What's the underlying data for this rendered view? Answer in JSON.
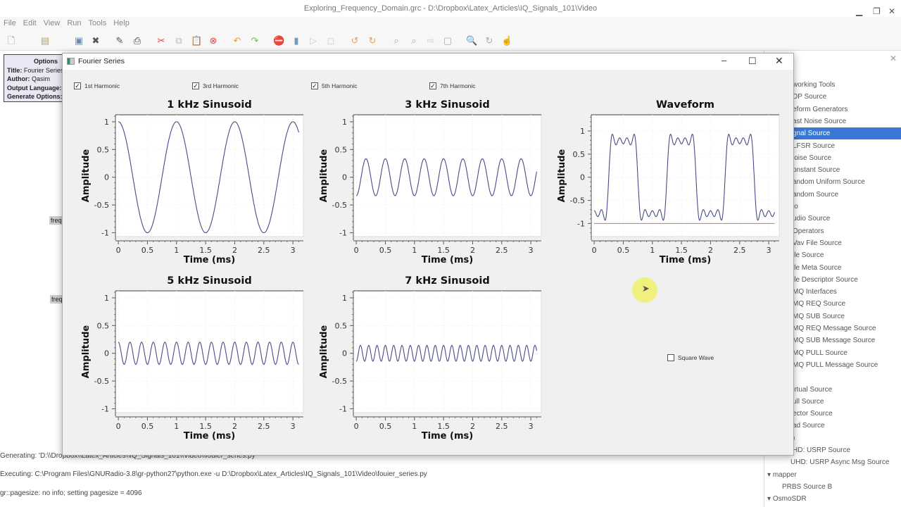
{
  "app": {
    "window_title": "Exploring_Frequency_Domain.grc - D:\\Dropbox\\Latex_Articles\\IQ_Signals_101\\Video",
    "menu": [
      "File",
      "Edit",
      "View",
      "Run",
      "Tools",
      "Help"
    ]
  },
  "flowgraph": {
    "options_block": {
      "header": "Options",
      "rows": [
        {
          "k": "Title:",
          "v": "Fourier Series"
        },
        {
          "k": "Author:",
          "v": "Qasim"
        },
        {
          "k": "Output Language:",
          "v": ""
        },
        {
          "k": "Generate Options:",
          "v": ""
        }
      ]
    },
    "variable_labels": [
      "freq",
      "freq"
    ]
  },
  "console": {
    "lines": [
      "Generating: 'D:\\\\Dropbox\\\\Latex_Articles\\\\IQ_Signals_101\\\\Video\\\\fouier_series.py",
      "Executing: C:\\Program Files\\GNURadio-3.8\\gr-python27\\python.exe -u D:\\Dropbox\\Latex_Articles\\IQ_Signals_101\\Video\\fouier_series.py",
      "gr::pagesize: no info; setting pagesize = 4096"
    ]
  },
  "block_tree": {
    "items": [
      {
        "label": "working Tools",
        "indent": 40
      },
      {
        "label": "DP Source",
        "indent": 40
      },
      {
        "label": "eform Generators",
        "indent": 40
      },
      {
        "label": "ast Noise Source",
        "indent": 40
      },
      {
        "label": "gnal Source",
        "indent": 40,
        "selected": true
      },
      {
        "label": "LFSR Source",
        "indent": 40
      },
      {
        "label": "loise Source",
        "indent": 40
      },
      {
        "label": "onstant Source",
        "indent": 40
      },
      {
        "label": "andom Uniform Source",
        "indent": 40
      },
      {
        "label": "andom Source",
        "indent": 40
      },
      {
        "label": "io",
        "indent": 40
      },
      {
        "label": "udio Source",
        "indent": 40
      },
      {
        "label": "Operators",
        "indent": 40
      },
      {
        "label": "Vav File Source",
        "indent": 40
      },
      {
        "label": "ile Source",
        "indent": 40
      },
      {
        "label": "ile Meta Source",
        "indent": 40
      },
      {
        "label": "ile Descriptor Source",
        "indent": 40
      },
      {
        "label": "MQ Interfaces",
        "indent": 40
      },
      {
        "label": "MQ REQ Source",
        "indent": 40
      },
      {
        "label": "MQ SUB Source",
        "indent": 40
      },
      {
        "label": "MQ REQ Message Source",
        "indent": 40
      },
      {
        "label": "MQ SUB Message Source",
        "indent": 40
      },
      {
        "label": "MQ PULL Source",
        "indent": 40
      },
      {
        "label": "MQ PULL Message Source",
        "indent": 40
      },
      {
        "label": "",
        "indent": 40
      },
      {
        "label": "irtual Source",
        "indent": 40
      },
      {
        "label": "ull Source",
        "indent": 40
      },
      {
        "label": "ector Source",
        "indent": 40
      },
      {
        "label": "ad Source",
        "indent": 40
      },
      {
        "label": ")",
        "indent": 40
      },
      {
        "label": "HD: USRP Source",
        "indent": 40
      },
      {
        "label": "UHD: USRP Async Msg Source",
        "indent": 37
      },
      {
        "label": "mapper",
        "indent": 4,
        "expander": "▾"
      },
      {
        "label": "PRBS Source B",
        "indent": 25
      },
      {
        "label": "OsmoSDR",
        "indent": 4,
        "expander": "▾"
      }
    ]
  },
  "dialog": {
    "title": "Fourier Series",
    "checkboxes": [
      {
        "label": "1st Harmonic",
        "checked": true
      },
      {
        "label": "3rd Harmonic",
        "checked": true
      },
      {
        "label": "5th Harmonic",
        "checked": true
      },
      {
        "label": "7th Harmonic",
        "checked": true
      }
    ],
    "square_wave": {
      "label": "Square Wave",
      "checked": false
    }
  },
  "chart_data": [
    {
      "type": "line",
      "title": "1 kHz Sinusoid",
      "xlabel": "Time (ms)",
      "ylabel": "Amplitude",
      "xlim": [
        0,
        3.1
      ],
      "ylim": [
        -1,
        1
      ],
      "xticks": [
        "0",
        "0.5",
        "1",
        "1.5",
        "2",
        "2.5",
        "3"
      ],
      "yticks": [
        "1",
        "0.5",
        "0",
        "-0.5",
        "-1"
      ],
      "grid": true,
      "series": [
        {
          "function": "cosine",
          "components": [
            {
              "frequency_khz": 1,
              "amplitude": 1
            }
          ],
          "color": "#4a4a8a"
        }
      ]
    },
    {
      "type": "line",
      "title": "3 kHz Sinusoid",
      "xlabel": "Time (ms)",
      "ylabel": "Amplitude",
      "xlim": [
        0,
        3.1
      ],
      "ylim": [
        -1,
        1
      ],
      "xticks": [
        "0",
        "0.5",
        "1",
        "1.5",
        "2",
        "2.5",
        "3"
      ],
      "yticks": [
        "1",
        "0.5",
        "0",
        "-0.5",
        "-1"
      ],
      "grid": true,
      "series": [
        {
          "function": "cosine",
          "components": [
            {
              "frequency_khz": 3,
              "amplitude": -0.333
            }
          ],
          "color": "#4a4a8a"
        }
      ]
    },
    {
      "type": "line",
      "title": "Waveform",
      "xlabel": "Time (ms)",
      "ylabel": "Amplitude",
      "xlim": [
        0,
        3.1
      ],
      "ylim": [
        -1.2,
        1.2
      ],
      "xticks": [
        "0",
        "0.5",
        "1",
        "1.5",
        "2",
        "2.5",
        "3"
      ],
      "yticks": [
        "1",
        "0.5",
        "0",
        "-0.5",
        "-1"
      ],
      "grid": true,
      "series": [
        {
          "function": "cosine",
          "components": [
            {
              "frequency_khz": 1,
              "amplitude": -1
            },
            {
              "frequency_khz": 3,
              "amplitude": 0.333
            },
            {
              "frequency_khz": 5,
              "amplitude": -0.2
            },
            {
              "frequency_khz": 7,
              "amplitude": 0.143
            }
          ],
          "color": "#4a4a8a"
        },
        {
          "function": "constant",
          "value": -1,
          "color": "#d9826e"
        }
      ]
    },
    {
      "type": "line",
      "title": "5 kHz Sinusoid",
      "xlabel": "Time (ms)",
      "ylabel": "Amplitude",
      "xlim": [
        0,
        3.1
      ],
      "ylim": [
        -1,
        1
      ],
      "xticks": [
        "0",
        "0.5",
        "1",
        "1.5",
        "2",
        "2.5",
        "3"
      ],
      "yticks": [
        "1",
        "0.5",
        "0",
        "-0.5",
        "-1"
      ],
      "grid": true,
      "series": [
        {
          "function": "cosine",
          "components": [
            {
              "frequency_khz": 5,
              "amplitude": 0.2
            }
          ],
          "color": "#4a4a8a"
        }
      ]
    },
    {
      "type": "line",
      "title": "7 kHz Sinusoid",
      "xlabel": "Time (ms)",
      "ylabel": "Amplitude",
      "xlim": [
        0,
        3.1
      ],
      "ylim": [
        -1,
        1
      ],
      "xticks": [
        "0",
        "0.5",
        "1",
        "1.5",
        "2",
        "2.5",
        "3"
      ],
      "yticks": [
        "1",
        "0.5",
        "0",
        "-0.5",
        "-1"
      ],
      "grid": true,
      "series": [
        {
          "function": "cosine",
          "components": [
            {
              "frequency_khz": 7,
              "amplitude": -0.143
            }
          ],
          "color": "#4a4a8a"
        }
      ]
    }
  ]
}
